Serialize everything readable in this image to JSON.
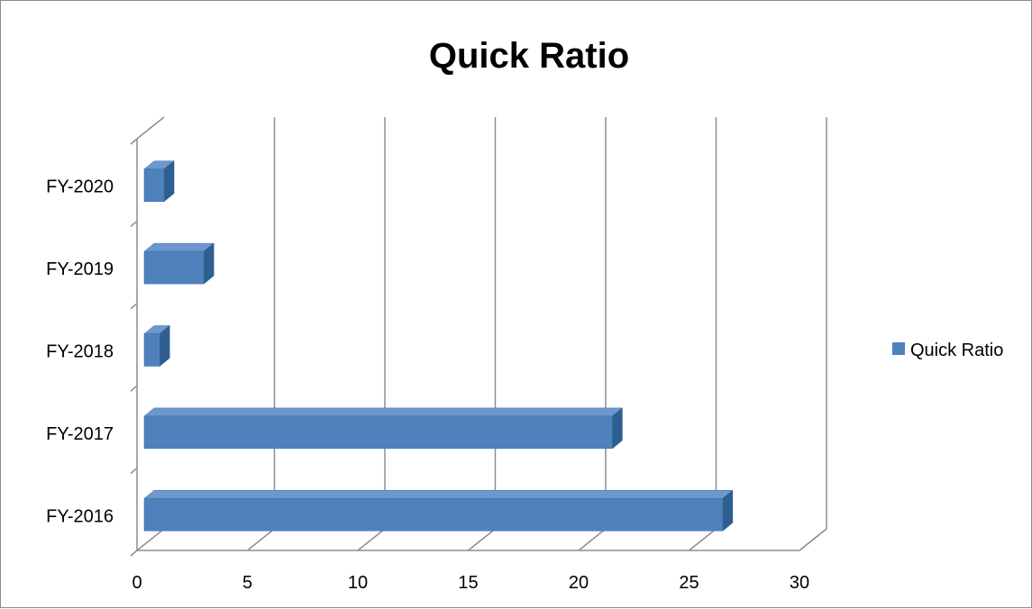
{
  "chart_data": {
    "type": "bar",
    "orientation": "horizontal",
    "style": "3d",
    "title": "Quick Ratio",
    "categories": [
      "FY-2016",
      "FY-2017",
      "FY-2018",
      "FY-2019",
      "FY-2020"
    ],
    "series": [
      {
        "name": "Quick Ratio",
        "values": [
          26.2,
          21.2,
          0.7,
          2.7,
          0.9
        ],
        "color": "#4f81bd"
      }
    ],
    "xlim": [
      0,
      30
    ],
    "x_ticks": [
      "0",
      "5",
      "10",
      "15",
      "20",
      "25",
      "30"
    ],
    "grid": true,
    "legend": "right"
  }
}
